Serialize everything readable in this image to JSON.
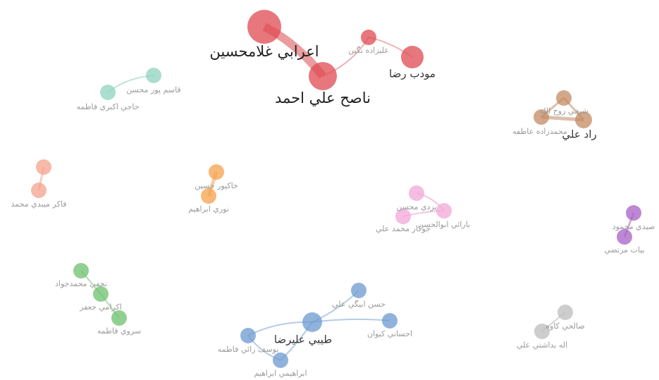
{
  "nodes": [
    {
      "label": "اعرابي غلامحسين"
    },
    {
      "label": "ناصح علي احمد"
    },
    {
      "label": "عليزاده نگين"
    },
    {
      "label": "مودب رضا"
    },
    {
      "label": "قاسم پور محسن"
    },
    {
      "label": "حاجي اكبري فاطمه"
    },
    {
      "label": "شيخي روح الله"
    },
    {
      "label": "راد علي"
    },
    {
      "label": "محمدزاده عاطفه"
    },
    {
      "label": "فاكر ميبدي محمد"
    },
    {
      "label": "خاكپور حسين"
    },
    {
      "label": "نوري ابراهيم"
    },
    {
      "label": "يزدي محسن"
    },
    {
      "label": "بارائي ابوالحسن"
    },
    {
      "label": "جوكار محمد علي"
    },
    {
      "label": "صيدي محمود"
    },
    {
      "label": "بيات مرتضي"
    },
    {
      "label": "نجفي محمدجواد"
    },
    {
      "label": "اكرامي جعفر"
    },
    {
      "label": "سروي فاطمه"
    },
    {
      "label": "حسن ابيگي علي"
    },
    {
      "label": "طيبي عليرضا"
    },
    {
      "label": "احساني كيوان"
    },
    {
      "label": "يوسف زائي فاطمه"
    },
    {
      "label": "ابراهيمي ابراهيم"
    },
    {
      "label": "صالحي كاوه"
    },
    {
      "label": "اله بداشتي علي"
    }
  ]
}
